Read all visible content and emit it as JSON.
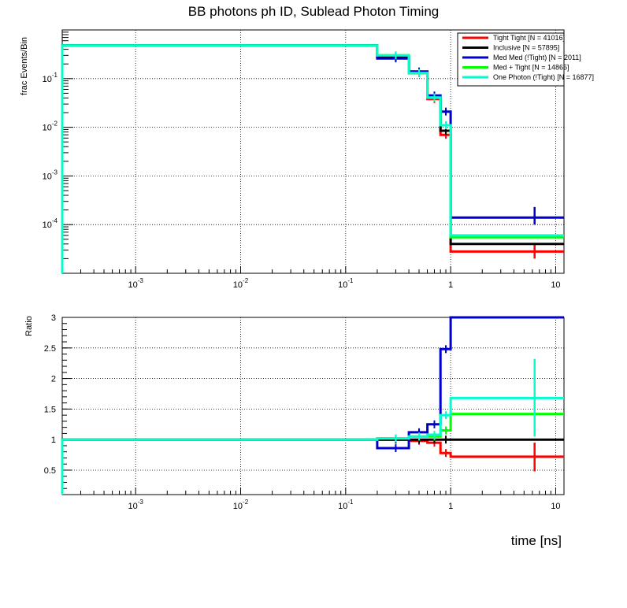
{
  "title": "BB photons ph ID, Sublead Photon Timing",
  "chart_data": [
    {
      "type": "line",
      "panel": "top",
      "title": "BB photons ph ID, Sublead Photon Timing",
      "xlabel": "",
      "ylabel": "frac Events/Bin",
      "xscale": "log",
      "yscale": "log",
      "xlim": [
        0.0002,
        12
      ],
      "ylim": [
        1e-05,
        1
      ],
      "grid": true,
      "legend_position": "top-right",
      "x_edges": [
        0.0002,
        0.2,
        0.4,
        0.6,
        0.8,
        1.0,
        12
      ],
      "series": [
        {
          "name": "Tight Tight [N = 41016]",
          "color": "#ff0000",
          "values": [
            0.48,
            0.28,
            0.13,
            0.038,
            0.007,
            2.8e-05
          ],
          "err_x": [
            6.3
          ],
          "err_lo": [
            2e-05
          ],
          "err_hi": [
            4e-05
          ]
        },
        {
          "name": "Inclusive [N = 57895]",
          "color": "#000000",
          "values": [
            0.48,
            0.28,
            0.13,
            0.04,
            0.0085,
            4e-05
          ]
        },
        {
          "name": "Med Med (!Tight) [N = 2011]",
          "color": "#0000cc",
          "values": [
            0.48,
            0.26,
            0.14,
            0.045,
            0.021,
            0.00014
          ],
          "err_x": [
            6.3
          ],
          "err_lo": [
            0.0001
          ],
          "err_hi": [
            0.00023
          ]
        },
        {
          "name": "Med + Tight [N = 14865]",
          "color": "#00ff00",
          "values": [
            0.48,
            0.3,
            0.13,
            0.04,
            0.011,
            5.5e-05
          ]
        },
        {
          "name": "One Photon (!Tight) [N = 16877]",
          "color": "#00ffcc",
          "values": [
            0.48,
            0.3,
            0.13,
            0.041,
            0.011,
            6e-05
          ]
        }
      ],
      "ytick_labels": [
        "10^-4",
        "10^-3",
        "10^-2",
        "10^-1"
      ],
      "xtick_labels": [
        "10^-3",
        "10^-2",
        "10^-1",
        "1",
        "10"
      ]
    },
    {
      "type": "line",
      "panel": "bottom",
      "xlabel": "time [ns]",
      "ylabel": "Ratio",
      "xscale": "log",
      "xlim": [
        0.0002,
        12
      ],
      "ylim": [
        0.1,
        3
      ],
      "grid": true,
      "x_edges": [
        0.0002,
        0.2,
        0.4,
        0.6,
        0.8,
        1.0,
        12
      ],
      "series": [
        {
          "name": "Tight Tight [N = 41016]",
          "color": "#ff0000",
          "values": [
            1.0,
            1.0,
            0.98,
            0.95,
            0.78,
            0.72
          ],
          "err_x": [
            6.3
          ],
          "err_lo": [
            0.48
          ],
          "err_hi": [
            0.95
          ]
        },
        {
          "name": "Inclusive [N = 57895]",
          "color": "#000000",
          "values": [
            1.0,
            1.0,
            1.0,
            1.0,
            1.0,
            1.0
          ]
        },
        {
          "name": "Med Med (!Tight) [N = 2011]",
          "color": "#0000cc",
          "values": [
            1.0,
            0.86,
            1.12,
            1.25,
            2.48,
            3.0
          ]
        },
        {
          "name": "Med + Tight [N = 14865]",
          "color": "#00ff00",
          "values": [
            1.0,
            1.02,
            1.05,
            1.05,
            1.15,
            1.42
          ]
        },
        {
          "name": "One Photon (!Tight) [N = 16877]",
          "color": "#00ffcc",
          "values": [
            1.0,
            1.02,
            1.05,
            1.08,
            1.4,
            1.68
          ],
          "err_x": [
            6.3
          ],
          "err_lo": [
            1.05
          ],
          "err_hi": [
            2.32
          ]
        }
      ],
      "ytick_labels": [
        "0.5",
        "1",
        "1.5",
        "2",
        "2.5",
        "3"
      ],
      "xtick_labels": [
        "10^-3",
        "10^-2",
        "10^-1",
        "1",
        "10"
      ]
    }
  ]
}
